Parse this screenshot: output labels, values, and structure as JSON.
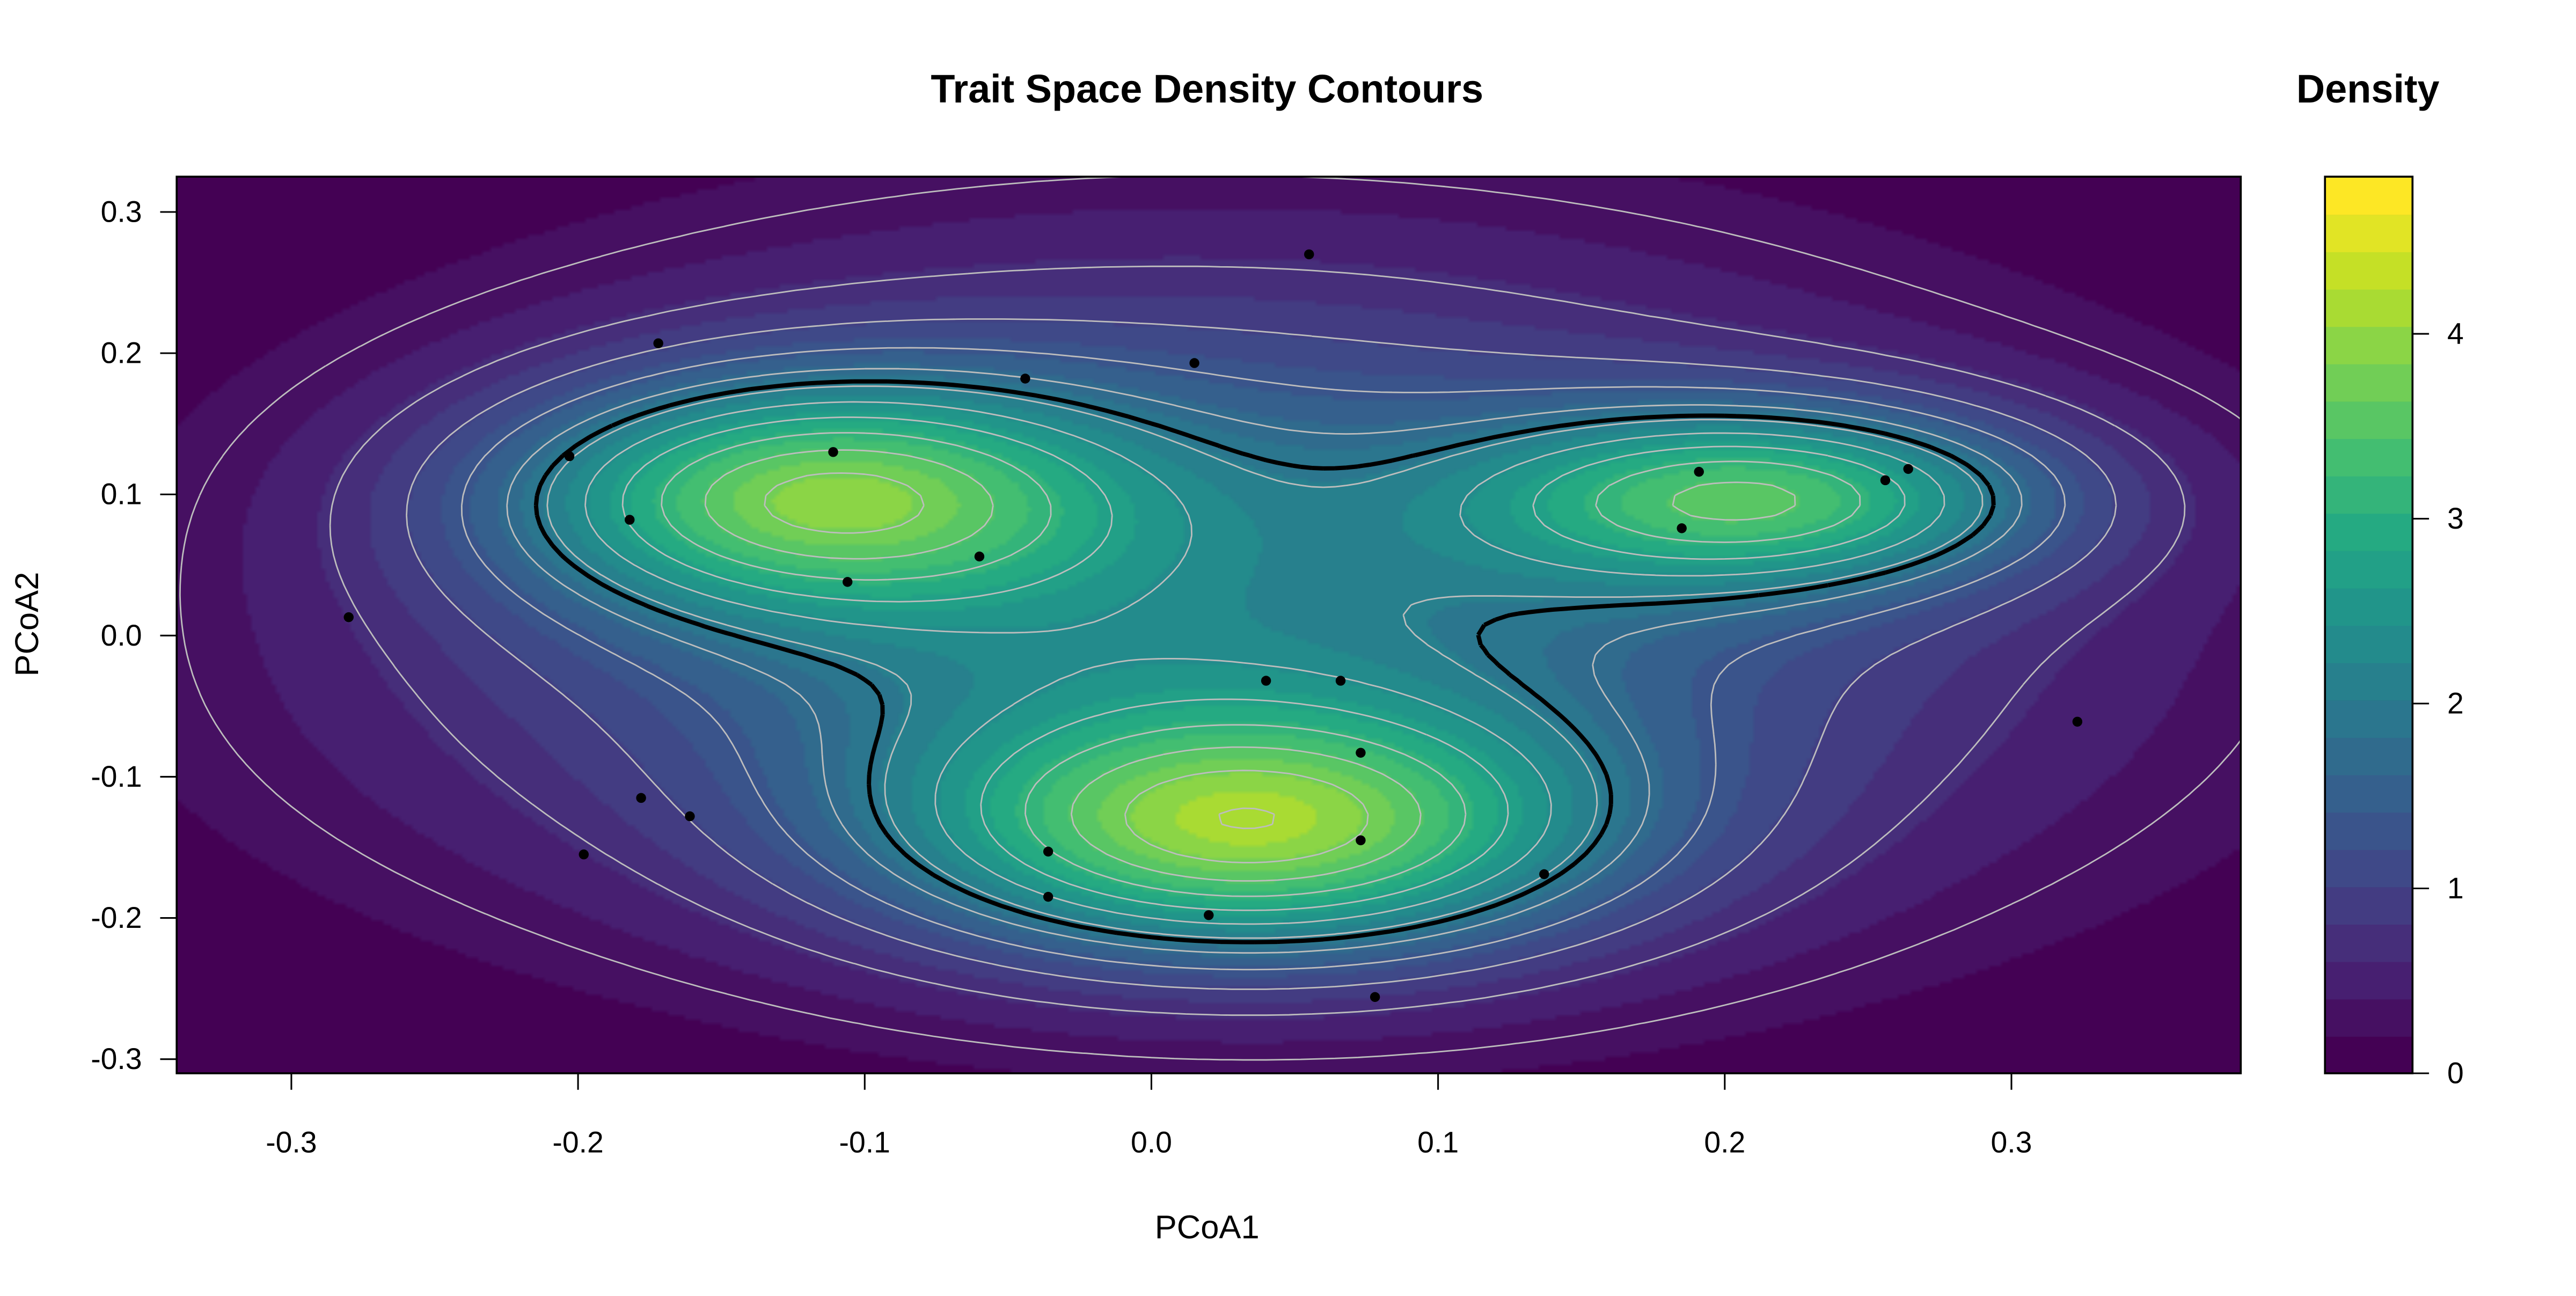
{
  "chart_data": {
    "type": "heatmap",
    "title": "Trait Space Density Contours",
    "xlabel": "PCoA1",
    "ylabel": "PCoA2",
    "xlim": [
      -0.34,
      0.38
    ],
    "ylim": [
      -0.31,
      0.325
    ],
    "x_ticks": [
      "-0.3",
      "-0.2",
      "-0.1",
      "0.0",
      "0.1",
      "0.2",
      "0.3"
    ],
    "y_ticks": [
      "0.3",
      "0.2",
      "0.1",
      "0.0",
      "-0.1",
      "-0.2",
      "-0.3"
    ],
    "colorscale": "viridis",
    "legend": {
      "title": "Density",
      "range": [
        0,
        4.85
      ],
      "ticks": [
        "0",
        "1",
        "2",
        "3",
        "4"
      ],
      "colors": [
        "#440154",
        "#482475",
        "#414487",
        "#355F8D",
        "#2A788E",
        "#21908C",
        "#22A884",
        "#44BF70",
        "#7AD151",
        "#BDDF26",
        "#FDE725"
      ]
    },
    "density_peaks": [
      {
        "x": 0.035,
        "y": -0.14,
        "density": 4.85
      },
      {
        "x": -0.12,
        "y": 0.1,
        "density": 4.2
      },
      {
        "x": 0.215,
        "y": 0.098,
        "density": 3.2
      }
    ],
    "points": [
      {
        "x": 0.055,
        "y": 0.27
      },
      {
        "x": -0.172,
        "y": 0.207
      },
      {
        "x": 0.015,
        "y": 0.193
      },
      {
        "x": -0.044,
        "y": 0.182
      },
      {
        "x": -0.203,
        "y": 0.127
      },
      {
        "x": -0.111,
        "y": 0.13
      },
      {
        "x": -0.182,
        "y": 0.082
      },
      {
        "x": -0.06,
        "y": 0.056
      },
      {
        "x": -0.106,
        "y": 0.038
      },
      {
        "x": 0.191,
        "y": 0.116
      },
      {
        "x": 0.256,
        "y": 0.11
      },
      {
        "x": 0.264,
        "y": 0.118
      },
      {
        "x": 0.185,
        "y": 0.076
      },
      {
        "x": -0.28,
        "y": 0.013
      },
      {
        "x": 0.04,
        "y": -0.032
      },
      {
        "x": 0.066,
        "y": -0.032
      },
      {
        "x": 0.073,
        "y": -0.083
      },
      {
        "x": 0.323,
        "y": -0.061
      },
      {
        "x": -0.178,
        "y": -0.115
      },
      {
        "x": -0.161,
        "y": -0.128
      },
      {
        "x": -0.198,
        "y": -0.155
      },
      {
        "x": 0.073,
        "y": -0.145
      },
      {
        "x": -0.036,
        "y": -0.153
      },
      {
        "x": 0.137,
        "y": -0.169
      },
      {
        "x": -0.036,
        "y": -0.185
      },
      {
        "x": 0.02,
        "y": -0.198
      },
      {
        "x": 0.078,
        "y": -0.256
      }
    ]
  }
}
